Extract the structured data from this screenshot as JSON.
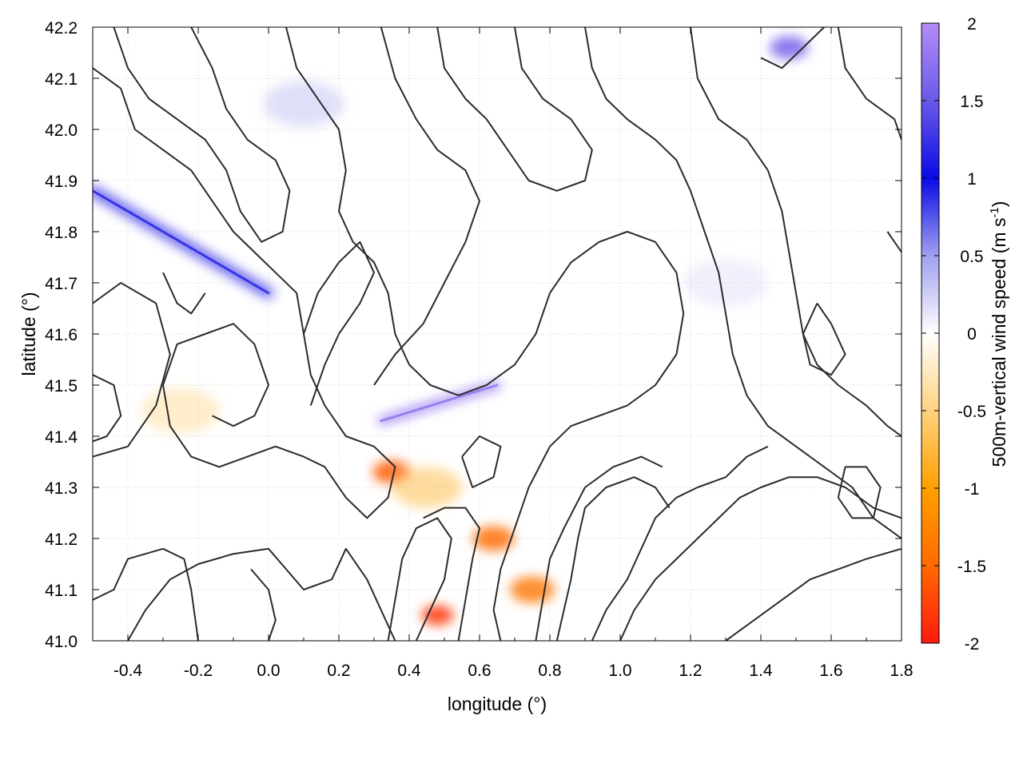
{
  "chart_data": {
    "type": "heatmap",
    "title": "",
    "xlabel": "longitude (°)",
    "ylabel": "latitude (°)",
    "xlim": [
      -0.5,
      1.8
    ],
    "ylim": [
      41.0,
      42.2
    ],
    "x_ticks": [
      "-0.4",
      "-0.2",
      "0.0",
      "0.2",
      "0.4",
      "0.6",
      "0.8",
      "1.0",
      "1.2",
      "1.4",
      "1.6",
      "1.8"
    ],
    "x_tick_values": [
      -0.4,
      -0.2,
      0.0,
      0.2,
      0.4,
      0.6,
      0.8,
      1.0,
      1.2,
      1.4,
      1.6,
      1.8
    ],
    "y_ticks": [
      "41.0",
      "41.1",
      "41.2",
      "41.3",
      "41.4",
      "41.5",
      "41.6",
      "41.7",
      "41.8",
      "41.9",
      "42.0",
      "42.1",
      "42.2"
    ],
    "y_tick_values": [
      41.0,
      41.1,
      41.2,
      41.3,
      41.4,
      41.5,
      41.6,
      41.7,
      41.8,
      41.9,
      42.0,
      42.1,
      42.2
    ],
    "grid": true,
    "colorbar": {
      "label_main": "500m-vertical wind speed (m s",
      "label_sup": "-1",
      "label_end": ")",
      "range": [
        -2,
        2
      ],
      "ticks": [
        "2",
        "1.5",
        "1",
        "0.5",
        "0",
        "-0.5",
        "-1",
        "-1.5",
        "-2"
      ],
      "tick_values": [
        2,
        1.5,
        1,
        0.5,
        0,
        -0.5,
        -1,
        -1.5,
        -2
      ],
      "colors": [
        {
          "value": -2.0,
          "color": "#ff1a10"
        },
        {
          "value": -1.5,
          "color": "#ff6a00"
        },
        {
          "value": -1.0,
          "color": "#ffa000"
        },
        {
          "value": -0.5,
          "color": "#ffd280"
        },
        {
          "value": 0.0,
          "color": "#ffffff"
        },
        {
          "value": 0.5,
          "color": "#a0a0f0"
        },
        {
          "value": 1.0,
          "color": "#0a0ae6"
        },
        {
          "value": 1.5,
          "color": "#6a5ae8"
        },
        {
          "value": 2.0,
          "color": "#b48cf6"
        }
      ]
    },
    "features": [
      {
        "name": "strong-updraft-ridge-nw",
        "from": [
          -0.5,
          41.88
        ],
        "to": [
          0.0,
          41.68
        ],
        "value": 1.2
      },
      {
        "name": "strong-updraft-center",
        "from": [
          0.32,
          41.43
        ],
        "to": [
          0.65,
          41.5
        ],
        "value": 1.8
      },
      {
        "name": "downdraft-center",
        "lon": 0.35,
        "lat": 41.33,
        "value": -1.6
      },
      {
        "name": "downdraft-south",
        "lon": 0.48,
        "lat": 41.05,
        "value": -1.8
      },
      {
        "name": "downdraft-sse",
        "lon": 0.64,
        "lat": 41.2,
        "value": -1.5
      },
      {
        "name": "downdraft-se",
        "lon": 0.75,
        "lat": 41.1,
        "value": -1.4
      },
      {
        "name": "updraft-ne-corner",
        "lon": 1.48,
        "lat": 42.16,
        "value": 1.6
      },
      {
        "name": "weak-downdraft-west",
        "lon": -0.25,
        "lat": 41.45,
        "value": -0.35
      },
      {
        "name": "weak-downdraft-plain",
        "lon": 0.45,
        "lat": 41.3,
        "value": -0.6
      },
      {
        "name": "weak-updraft-north",
        "lon": 0.1,
        "lat": 42.05,
        "value": 0.3
      },
      {
        "name": "weak-updraft-east",
        "lon": 1.3,
        "lat": 41.7,
        "value": 0.15
      }
    ],
    "terrain_contours": [
      [
        [
          -0.5,
          41.66
        ],
        [
          -0.42,
          41.7
        ],
        [
          -0.32,
          41.66
        ],
        [
          -0.28,
          41.56
        ],
        [
          -0.32,
          41.46
        ],
        [
          -0.4,
          41.38
        ],
        [
          -0.5,
          41.36
        ]
      ],
      [
        [
          -0.5,
          41.52
        ],
        [
          -0.44,
          41.5
        ],
        [
          -0.42,
          41.44
        ],
        [
          -0.46,
          41.4
        ],
        [
          -0.5,
          41.39
        ]
      ],
      [
        [
          -0.4,
          41.0
        ],
        [
          -0.35,
          41.06
        ],
        [
          -0.28,
          41.12
        ],
        [
          -0.2,
          41.15
        ],
        [
          -0.1,
          41.17
        ],
        [
          0.0,
          41.18
        ],
        [
          0.05,
          41.14
        ],
        [
          0.1,
          41.1
        ],
        [
          0.18,
          41.12
        ],
        [
          0.22,
          41.18
        ],
        [
          0.28,
          41.12
        ],
        [
          0.32,
          41.06
        ],
        [
          0.36,
          41.0
        ]
      ],
      [
        [
          -0.5,
          41.08
        ],
        [
          -0.44,
          41.1
        ],
        [
          -0.4,
          41.16
        ],
        [
          -0.3,
          41.18
        ],
        [
          -0.24,
          41.16
        ],
        [
          -0.22,
          41.1
        ],
        [
          -0.2,
          41.0
        ]
      ],
      [
        [
          -0.5,
          42.12
        ],
        [
          -0.42,
          42.08
        ],
        [
          -0.38,
          42.0
        ],
        [
          -0.3,
          41.96
        ],
        [
          -0.22,
          41.92
        ],
        [
          -0.16,
          41.86
        ],
        [
          -0.1,
          41.8
        ],
        [
          -0.04,
          41.76
        ],
        [
          0.02,
          41.72
        ],
        [
          0.08,
          41.68
        ],
        [
          0.1,
          41.6
        ],
        [
          0.12,
          41.52
        ],
        [
          0.16,
          41.46
        ],
        [
          0.22,
          41.4
        ],
        [
          0.3,
          41.38
        ],
        [
          0.36,
          41.34
        ],
        [
          0.34,
          41.28
        ],
        [
          0.28,
          41.24
        ],
        [
          0.22,
          41.28
        ],
        [
          0.16,
          41.34
        ],
        [
          0.1,
          41.36
        ],
        [
          0.02,
          41.38
        ],
        [
          -0.06,
          41.36
        ],
        [
          -0.14,
          41.34
        ],
        [
          -0.22,
          41.36
        ],
        [
          -0.28,
          41.42
        ],
        [
          -0.3,
          41.5
        ],
        [
          -0.26,
          41.58
        ],
        [
          -0.18,
          41.6
        ],
        [
          -0.1,
          41.62
        ],
        [
          -0.04,
          41.58
        ],
        [
          0.0,
          41.5
        ],
        [
          -0.04,
          41.44
        ],
        [
          -0.1,
          41.42
        ],
        [
          -0.16,
          41.44
        ]
      ],
      [
        [
          -0.22,
          42.2
        ],
        [
          -0.16,
          42.12
        ],
        [
          -0.12,
          42.04
        ],
        [
          -0.06,
          41.98
        ],
        [
          0.02,
          41.94
        ],
        [
          0.06,
          41.88
        ],
        [
          0.04,
          41.8
        ],
        [
          -0.02,
          41.78
        ],
        [
          -0.08,
          41.84
        ],
        [
          -0.12,
          41.92
        ],
        [
          -0.18,
          41.98
        ],
        [
          -0.26,
          42.02
        ],
        [
          -0.34,
          42.06
        ],
        [
          -0.4,
          42.12
        ],
        [
          -0.44,
          42.2
        ]
      ],
      [
        [
          0.05,
          42.2
        ],
        [
          0.08,
          42.12
        ],
        [
          0.14,
          42.06
        ],
        [
          0.2,
          42.0
        ],
        [
          0.22,
          41.92
        ],
        [
          0.2,
          41.84
        ],
        [
          0.24,
          41.78
        ],
        [
          0.3,
          41.74
        ],
        [
          0.34,
          41.68
        ],
        [
          0.36,
          41.6
        ],
        [
          0.4,
          41.54
        ],
        [
          0.46,
          41.5
        ],
        [
          0.54,
          41.48
        ],
        [
          0.62,
          41.5
        ],
        [
          0.7,
          41.54
        ],
        [
          0.76,
          41.6
        ],
        [
          0.8,
          41.68
        ],
        [
          0.86,
          41.74
        ],
        [
          0.94,
          41.78
        ],
        [
          1.02,
          41.8
        ],
        [
          1.1,
          41.78
        ],
        [
          1.16,
          41.72
        ],
        [
          1.18,
          41.64
        ],
        [
          1.16,
          41.56
        ],
        [
          1.1,
          41.5
        ],
        [
          1.02,
          41.46
        ],
        [
          0.94,
          41.44
        ],
        [
          0.86,
          41.42
        ],
        [
          0.8,
          41.38
        ],
        [
          0.74,
          41.3
        ],
        [
          0.7,
          41.22
        ],
        [
          0.66,
          41.14
        ],
        [
          0.64,
          41.06
        ],
        [
          0.66,
          41.0
        ]
      ],
      [
        [
          0.42,
          41.0
        ],
        [
          0.46,
          41.06
        ],
        [
          0.5,
          41.12
        ],
        [
          0.52,
          41.2
        ],
        [
          0.48,
          41.24
        ],
        [
          0.42,
          41.22
        ],
        [
          0.38,
          41.16
        ],
        [
          0.36,
          41.08
        ],
        [
          0.34,
          41.0
        ]
      ],
      [
        [
          0.54,
          41.0
        ],
        [
          0.56,
          41.08
        ],
        [
          0.58,
          41.16
        ],
        [
          0.6,
          41.22
        ],
        [
          0.56,
          41.26
        ],
        [
          0.5,
          41.26
        ],
        [
          0.44,
          41.24
        ]
      ],
      [
        [
          0.3,
          41.5
        ],
        [
          0.36,
          41.56
        ],
        [
          0.44,
          41.62
        ],
        [
          0.5,
          41.7
        ],
        [
          0.56,
          41.78
        ],
        [
          0.6,
          41.86
        ],
        [
          0.56,
          41.92
        ],
        [
          0.48,
          41.96
        ],
        [
          0.42,
          42.02
        ],
        [
          0.36,
          42.1
        ],
        [
          0.32,
          42.2
        ]
      ],
      [
        [
          0.7,
          42.2
        ],
        [
          0.72,
          42.12
        ],
        [
          0.78,
          42.06
        ],
        [
          0.86,
          42.02
        ],
        [
          0.92,
          41.96
        ],
        [
          0.9,
          41.9
        ],
        [
          0.82,
          41.88
        ],
        [
          0.74,
          41.9
        ],
        [
          0.68,
          41.96
        ],
        [
          0.62,
          42.02
        ],
        [
          0.56,
          42.06
        ],
        [
          0.5,
          42.12
        ],
        [
          0.48,
          42.2
        ]
      ],
      [
        [
          0.9,
          42.2
        ],
        [
          0.92,
          42.12
        ],
        [
          0.96,
          42.06
        ],
        [
          1.02,
          42.02
        ],
        [
          1.1,
          41.98
        ],
        [
          1.16,
          41.94
        ],
        [
          1.2,
          41.88
        ],
        [
          1.24,
          41.8
        ],
        [
          1.28,
          41.72
        ],
        [
          1.3,
          41.64
        ],
        [
          1.32,
          41.56
        ],
        [
          1.36,
          41.48
        ],
        [
          1.42,
          41.42
        ],
        [
          1.5,
          41.38
        ],
        [
          1.58,
          41.34
        ],
        [
          1.66,
          41.3
        ],
        [
          1.72,
          41.24
        ],
        [
          1.8,
          41.2
        ]
      ],
      [
        [
          1.2,
          42.2
        ],
        [
          1.22,
          42.1
        ],
        [
          1.28,
          42.02
        ],
        [
          1.36,
          41.98
        ],
        [
          1.42,
          41.92
        ],
        [
          1.46,
          41.84
        ],
        [
          1.48,
          41.76
        ],
        [
          1.5,
          41.68
        ],
        [
          1.52,
          41.6
        ],
        [
          1.56,
          41.54
        ],
        [
          1.62,
          41.5
        ],
        [
          1.7,
          41.46
        ],
        [
          1.76,
          41.42
        ],
        [
          1.8,
          41.4
        ]
      ],
      [
        [
          1.0,
          41.0
        ],
        [
          1.04,
          41.06
        ],
        [
          1.1,
          41.12
        ],
        [
          1.16,
          41.16
        ],
        [
          1.22,
          41.2
        ],
        [
          1.28,
          41.24
        ],
        [
          1.34,
          41.28
        ],
        [
          1.4,
          41.3
        ],
        [
          1.48,
          41.32
        ],
        [
          1.56,
          41.32
        ],
        [
          1.64,
          41.3
        ],
        [
          1.72,
          41.26
        ],
        [
          1.8,
          41.24
        ]
      ],
      [
        [
          0.92,
          41.0
        ],
        [
          0.96,
          41.06
        ],
        [
          1.02,
          41.12
        ],
        [
          1.06,
          41.18
        ],
        [
          1.1,
          41.24
        ],
        [
          1.16,
          41.28
        ],
        [
          1.22,
          41.3
        ],
        [
          1.3,
          41.32
        ],
        [
          1.36,
          41.36
        ],
        [
          1.42,
          41.38
        ]
      ],
      [
        [
          1.3,
          41.0
        ],
        [
          1.38,
          41.04
        ],
        [
          1.46,
          41.08
        ],
        [
          1.54,
          41.12
        ],
        [
          1.62,
          41.14
        ],
        [
          1.7,
          41.16
        ],
        [
          1.8,
          41.18
        ]
      ],
      [
        [
          0.82,
          41.0
        ],
        [
          0.84,
          41.06
        ],
        [
          0.86,
          41.12
        ],
        [
          0.88,
          41.2
        ],
        [
          0.9,
          41.26
        ],
        [
          0.96,
          41.3
        ],
        [
          1.04,
          41.32
        ],
        [
          1.1,
          41.3
        ],
        [
          1.14,
          41.26
        ]
      ],
      [
        [
          0.76,
          41.0
        ],
        [
          0.78,
          41.08
        ],
        [
          0.8,
          41.16
        ],
        [
          0.84,
          41.22
        ],
        [
          0.9,
          41.3
        ],
        [
          0.98,
          41.34
        ],
        [
          1.06,
          41.36
        ],
        [
          1.12,
          41.34
        ]
      ],
      [
        [
          1.56,
          41.66
        ],
        [
          1.6,
          41.62
        ],
        [
          1.64,
          41.56
        ],
        [
          1.6,
          41.52
        ],
        [
          1.54,
          41.54
        ],
        [
          1.52,
          41.6
        ],
        [
          1.56,
          41.66
        ]
      ],
      [
        [
          1.62,
          41.28
        ],
        [
          1.66,
          41.24
        ],
        [
          1.72,
          41.24
        ],
        [
          1.74,
          41.3
        ],
        [
          1.7,
          41.34
        ],
        [
          1.64,
          41.34
        ],
        [
          1.62,
          41.28
        ]
      ],
      [
        [
          0.12,
          41.46
        ],
        [
          0.16,
          41.54
        ],
        [
          0.2,
          41.6
        ],
        [
          0.26,
          41.66
        ],
        [
          0.3,
          41.72
        ],
        [
          0.26,
          41.78
        ],
        [
          0.2,
          41.74
        ],
        [
          0.14,
          41.68
        ],
        [
          0.1,
          41.6
        ]
      ],
      [
        [
          1.4,
          42.14
        ],
        [
          1.46,
          42.12
        ],
        [
          1.52,
          42.16
        ],
        [
          1.58,
          42.2
        ]
      ],
      [
        [
          1.62,
          42.2
        ],
        [
          1.64,
          42.12
        ],
        [
          1.7,
          42.06
        ],
        [
          1.78,
          42.02
        ],
        [
          1.8,
          41.98
        ]
      ],
      [
        [
          -0.05,
          41.14
        ],
        [
          0.0,
          41.1
        ],
        [
          0.02,
          41.04
        ],
        [
          0.0,
          41.0
        ]
      ],
      [
        [
          0.55,
          41.36
        ],
        [
          0.6,
          41.4
        ],
        [
          0.66,
          41.38
        ],
        [
          0.64,
          41.32
        ],
        [
          0.58,
          41.3
        ],
        [
          0.55,
          41.36
        ]
      ],
      [
        [
          -0.3,
          41.72
        ],
        [
          -0.26,
          41.66
        ],
        [
          -0.22,
          41.64
        ],
        [
          -0.18,
          41.68
        ]
      ],
      [
        [
          1.76,
          41.8
        ],
        [
          1.8,
          41.76
        ]
      ]
    ]
  }
}
